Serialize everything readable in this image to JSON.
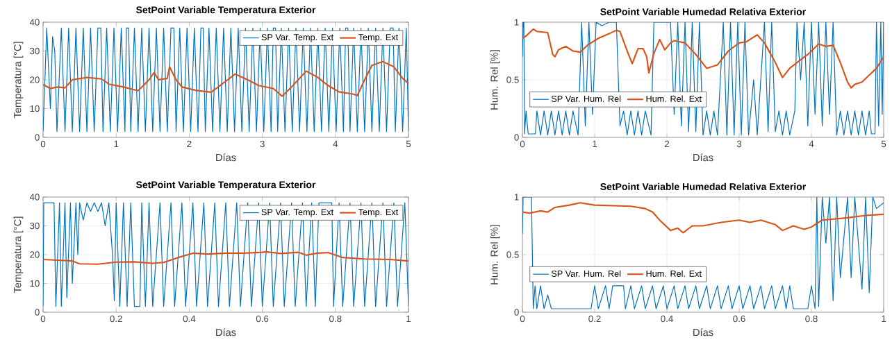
{
  "chart_data": [
    {
      "type": "line",
      "title": "SetPoint Variable Temperatura Exterior",
      "xlabel": "Días",
      "ylabel": "Temperatura [°C]",
      "xlim": [
        0,
        5
      ],
      "ylim": [
        0,
        40
      ],
      "xticks": [
        0,
        1,
        2,
        3,
        4,
        5
      ],
      "yticks": [
        0,
        10,
        20,
        30,
        40
      ],
      "grid": true,
      "legend": "top right",
      "series": [
        {
          "name": "SP Var. Temp. Ext",
          "color": "#0072bd",
          "x": [
            0,
            0.05,
            0.1,
            0.13,
            0.16,
            0.19,
            0.25,
            0.3,
            0.35,
            0.4,
            0.45,
            0.5,
            0.55,
            0.6,
            0.65,
            0.7,
            0.75,
            0.79,
            0.82,
            0.87,
            0.92,
            0.97,
            1.02,
            1.07,
            1.12,
            1.14,
            1.17,
            1.2,
            1.25,
            1.3,
            1.35,
            1.4,
            1.45,
            1.5,
            1.55,
            1.6,
            1.65,
            1.7,
            1.75,
            1.79,
            1.82,
            1.87,
            1.92,
            1.97,
            2.02,
            2.07,
            2.12,
            2.16,
            2.19,
            2.22,
            2.27,
            2.32,
            2.37,
            2.42,
            2.47,
            2.52,
            2.57,
            2.62,
            2.67,
            2.72,
            2.77,
            2.82,
            2.87,
            2.92,
            2.97,
            3.02,
            3.07,
            3.12,
            3.15,
            3.18,
            3.21,
            3.26,
            3.31,
            3.36,
            3.41,
            3.46,
            3.51,
            3.56,
            3.61,
            3.66,
            3.71,
            3.76,
            3.81,
            3.86,
            3.91,
            3.96,
            4.01,
            4.06,
            4.11,
            4.14,
            4.17,
            4.2,
            4.25,
            4.3,
            4.35,
            4.4,
            4.45,
            4.5,
            4.55,
            4.6,
            4.65,
            4.7,
            4.75,
            4.79,
            4.82,
            4.87,
            4.92,
            4.97,
            5
          ],
          "values": [
            2,
            38,
            10,
            35,
            30,
            2,
            38,
            2,
            38,
            2,
            38,
            2,
            38,
            2,
            38,
            2,
            38,
            38,
            2,
            38,
            2,
            38,
            2,
            38,
            2,
            38,
            38,
            2,
            38,
            2,
            38,
            2,
            38,
            2,
            38,
            2,
            38,
            2,
            38,
            38,
            2,
            38,
            2,
            38,
            2,
            38,
            2,
            38,
            38,
            2,
            38,
            2,
            38,
            2,
            38,
            2,
            38,
            2,
            38,
            2,
            38,
            2,
            38,
            2,
            38,
            2,
            38,
            2,
            38,
            38,
            2,
            38,
            2,
            38,
            2,
            38,
            2,
            38,
            2,
            38,
            2,
            38,
            2,
            38,
            2,
            38,
            2,
            38,
            2,
            38,
            38,
            2,
            38,
            2,
            38,
            2,
            38,
            2,
            38,
            2,
            38,
            2,
            38,
            38,
            2,
            38,
            2,
            38,
            2
          ]
        },
        {
          "name": "Temp. Ext",
          "color": "#d95319",
          "x": [
            0,
            0.1,
            0.2,
            0.3,
            0.4,
            0.6,
            0.8,
            0.9,
            1.1,
            1.3,
            1.45,
            1.52,
            1.58,
            1.7,
            1.73,
            1.82,
            1.9,
            2.1,
            2.3,
            2.45,
            2.63,
            2.8,
            2.95,
            3.15,
            3.27,
            3.4,
            3.6,
            3.75,
            3.9,
            4.05,
            4.25,
            4.3,
            4.4,
            4.5,
            4.65,
            4.8,
            4.92,
            5
          ],
          "values": [
            18.3,
            17,
            17.5,
            17.2,
            20,
            20.8,
            20.3,
            18.5,
            17.5,
            16.2,
            20,
            22.5,
            20,
            20.5,
            24.5,
            20,
            17.5,
            16.3,
            15.7,
            18.5,
            22,
            20,
            18,
            17,
            14.3,
            17.5,
            23,
            21,
            18,
            15.8,
            15,
            14.5,
            20,
            25,
            26.3,
            24.5,
            20.5,
            18.7
          ]
        }
      ]
    },
    {
      "type": "line",
      "title": "SetPoint Variable Humedad Relativa Exterior",
      "xlabel": "Días",
      "ylabel": "Hum. Rel [%]",
      "xlim": [
        0,
        5
      ],
      "ylim": [
        0,
        1
      ],
      "xticks": [
        0,
        1,
        2,
        3,
        4,
        5
      ],
      "yticks": [
        0,
        0.5,
        1
      ],
      "grid": true,
      "legend": "left",
      "series": [
        {
          "name": "SP Var. Hum. Rel",
          "color": "#0072bd",
          "x": [
            0,
            0.01,
            0.02,
            0.03,
            0.05,
            0.08,
            0.18,
            0.2,
            0.25,
            0.3,
            0.35,
            0.4,
            0.45,
            0.5,
            0.55,
            0.6,
            0.65,
            0.7,
            0.77,
            0.82,
            0.87,
            0.92,
            0.97,
            1.02,
            1.1,
            1.15,
            1.2,
            1.3,
            1.35,
            1.4,
            1.45,
            1.5,
            1.55,
            1.6,
            1.65,
            1.7,
            1.78,
            1.82,
            1.95,
            2.0,
            2.05,
            2.1,
            2.15,
            2.2,
            2.25,
            2.3,
            2.35,
            2.4,
            2.45,
            2.5,
            2.55,
            2.6,
            2.65,
            2.7,
            2.78,
            2.83,
            2.88,
            2.93,
            2.98,
            3.03,
            3.08,
            3.13,
            3.2,
            3.25,
            3.35,
            3.4,
            3.45,
            3.5,
            3.55,
            3.6,
            3.65,
            3.7,
            3.77,
            3.8,
            3.85,
            3.9,
            3.95,
            4.0,
            4.05,
            4.1,
            4.15,
            4.2,
            4.25,
            4.3,
            4.35,
            4.4,
            4.45,
            4.5,
            4.55,
            4.6,
            4.65,
            4.7,
            4.75,
            4.8,
            4.83,
            4.88,
            4.9,
            4.93,
            4.96,
            4.98,
            5
          ],
          "values": [
            0.7,
            1,
            1,
            0.03,
            0.23,
            0.03,
            0.03,
            0.23,
            0.02,
            0.23,
            0.02,
            0.23,
            0.02,
            0.23,
            0.02,
            0.23,
            0.02,
            0.23,
            0.02,
            1,
            0.1,
            1,
            0.2,
            1,
            0.97,
            null,
            1,
            1,
            0.1,
            0.23,
            0.02,
            0.23,
            0.02,
            0.23,
            0.02,
            0.23,
            0.02,
            1,
            1,
            null,
            1,
            0.2,
            1,
            0.1,
            1,
            0.05,
            1,
            0.05,
            1,
            0.02,
            0.23,
            0.02,
            0.23,
            0.02,
            1,
            0.02,
            1,
            0.02,
            1,
            0.02,
            1,
            0.02,
            0.5,
            0.02,
            1,
            0.05,
            1,
            0.05,
            0.23,
            0.02,
            0.23,
            0.02,
            0.23,
            1,
            0.5,
            1,
            0.1,
            1,
            0.2,
            1,
            0.1,
            1,
            0.2,
            1,
            0.02,
            0.23,
            0.02,
            0.23,
            0.02,
            0.23,
            0.02,
            0.23,
            0.02,
            0.23,
            0.03,
            0.03,
            1,
            0.1,
            1,
            0.2,
            1
          ]
        },
        {
          "name": "Hum. Rel. Ext",
          "color": "#d95319",
          "x": [
            0,
            0.05,
            0.15,
            0.2,
            0.35,
            0.42,
            0.45,
            0.5,
            0.6,
            0.7,
            0.8,
            0.9,
            1.05,
            1.2,
            1.3,
            1.35,
            1.45,
            1.52,
            1.6,
            1.67,
            1.72,
            1.75,
            1.82,
            1.9,
            1.97,
            2.05,
            2.1,
            2.25,
            2.4,
            2.55,
            2.7,
            2.85,
            3.0,
            3.1,
            3.25,
            3.35,
            3.5,
            3.6,
            3.7,
            3.8,
            3.95,
            4.1,
            4.2,
            4.3,
            4.4,
            4.5,
            4.55,
            4.6,
            4.7,
            4.8,
            4.9,
            5
          ],
          "values": [
            0.86,
            0.88,
            0.94,
            0.92,
            0.91,
            0.72,
            0.7,
            0.76,
            0.79,
            0.75,
            0.74,
            0.8,
            0.86,
            0.9,
            0.93,
            0.92,
            0.75,
            0.64,
            0.77,
            0.77,
            0.7,
            0.56,
            0.73,
            0.85,
            0.76,
            0.82,
            0.84,
            0.82,
            0.72,
            0.6,
            0.63,
            0.75,
            0.82,
            0.83,
            0.89,
            0.82,
            0.65,
            0.52,
            0.6,
            0.65,
            0.72,
            0.81,
            0.79,
            0.8,
            0.65,
            0.48,
            0.43,
            0.46,
            0.48,
            0.54,
            0.6,
            0.7
          ]
        }
      ]
    },
    {
      "type": "line",
      "title": "SetPoint Variable Temperatura Exterior",
      "xlabel": "Días",
      "ylabel": "Temperatura [°C]",
      "xlim": [
        0,
        1
      ],
      "ylim": [
        0,
        40
      ],
      "xticks": [
        0,
        0.2,
        0.4,
        0.6,
        0.8,
        1
      ],
      "yticks": [
        0,
        10,
        20,
        30,
        40
      ],
      "grid": true,
      "legend": "top right",
      "series": [
        {
          "name": "SP Var. Temp. Ext",
          "color": "#0072bd",
          "x": [
            0,
            0.002,
            0.03,
            0.035,
            0.045,
            0.05,
            0.06,
            0.065,
            0.075,
            0.08,
            0.09,
            0.095,
            0.1,
            0.11,
            0.12,
            0.13,
            0.14,
            0.15,
            0.16,
            0.17,
            0.18,
            0.19,
            0.195,
            0.2,
            0.21,
            0.22,
            0.23,
            0.24,
            0.25,
            0.255,
            0.265,
            0.27,
            0.28,
            0.29,
            0.3,
            0.32,
            0.33,
            0.35,
            0.36,
            0.38,
            0.39,
            0.41,
            0.42,
            0.44,
            0.45,
            0.47,
            0.48,
            0.5,
            0.51,
            0.53,
            0.54,
            0.56,
            0.57,
            0.59,
            0.6,
            0.62,
            0.63,
            0.65,
            0.66,
            0.68,
            0.69,
            0.71,
            0.72,
            0.735,
            0.745,
            0.755,
            0.79,
            0.795,
            0.81,
            0.82,
            0.84,
            0.85,
            0.87,
            0.88,
            0.9,
            0.91,
            0.93,
            0.94,
            0.96,
            0.97,
            0.99,
            1
          ],
          "values": [
            2,
            38,
            38,
            2,
            38,
            2,
            38,
            5,
            38,
            10,
            38,
            20,
            38,
            32,
            38,
            35,
            38,
            35,
            38,
            30,
            38,
            20,
            4,
            38,
            2,
            38,
            2,
            38,
            2,
            2,
            2,
            38,
            2,
            38,
            2,
            38,
            2,
            38,
            2,
            38,
            2,
            38,
            2,
            38,
            2,
            38,
            2,
            38,
            2,
            38,
            2,
            38,
            2,
            38,
            2,
            38,
            2,
            38,
            2,
            38,
            2,
            38,
            2,
            38,
            2,
            38,
            38,
            2,
            38,
            2,
            38,
            2,
            38,
            2,
            38,
            2,
            38,
            2,
            38,
            2,
            38,
            2
          ]
        },
        {
          "name": "Temp. Ext",
          "color": "#d95319",
          "x": [
            0,
            0.05,
            0.08,
            0.1,
            0.15,
            0.2,
            0.25,
            0.3,
            0.33,
            0.37,
            0.41,
            0.45,
            0.5,
            0.55,
            0.6,
            0.61,
            0.65,
            0.7,
            0.72,
            0.75,
            0.78,
            0.82,
            0.88,
            0.95,
            1
          ],
          "values": [
            18.3,
            18,
            17.8,
            16.8,
            16.7,
            17.4,
            17.5,
            17,
            17.3,
            19,
            20.5,
            20.2,
            20.5,
            20.5,
            20.8,
            21,
            20.4,
            20.8,
            19.8,
            20.5,
            20.7,
            19,
            18.5,
            18.3,
            17.8
          ]
        }
      ]
    },
    {
      "type": "line",
      "title": "SetPoint Variable Humedad Relativa Exterior",
      "xlabel": "Días",
      "ylabel": "Hum. Rel [%]",
      "xlim": [
        0,
        1
      ],
      "ylim": [
        0,
        1
      ],
      "xticks": [
        0,
        0.2,
        0.4,
        0.6,
        0.8,
        1
      ],
      "yticks": [
        0,
        0.5,
        1
      ],
      "grid": true,
      "legend": "left",
      "series": [
        {
          "name": "SP Var. Hum. Rel",
          "color": "#0072bd",
          "x": [
            0,
            0.002,
            0.025,
            0.03,
            0.035,
            0.04,
            0.05,
            0.06,
            0.07,
            0.08,
            0.1,
            0.19,
            0.2,
            0.21,
            0.23,
            0.24,
            0.25,
            0.28,
            0.285,
            0.3,
            0.31,
            0.33,
            0.34,
            0.36,
            0.37,
            0.39,
            0.4,
            0.42,
            0.43,
            0.45,
            0.46,
            0.48,
            0.49,
            0.51,
            0.52,
            0.54,
            0.55,
            0.57,
            0.58,
            0.6,
            0.61,
            0.63,
            0.64,
            0.66,
            0.67,
            0.69,
            0.7,
            0.72,
            0.73,
            0.74,
            0.75,
            0.79,
            0.8,
            0.81,
            0.815,
            0.82,
            0.83,
            0.84,
            0.85,
            0.86,
            0.87,
            0.88,
            0.9,
            0.91,
            0.92,
            0.94,
            0.95,
            0.96,
            0.97,
            0.98,
            1
          ],
          "values": [
            0.68,
            1,
            1,
            0.03,
            0.23,
            0.03,
            0.23,
            0.03,
            0.15,
            0.03,
            0.03,
            0.03,
            0.23,
            0.03,
            0.23,
            0.03,
            0.23,
            0.23,
            0.03,
            0.23,
            0.03,
            0.23,
            0.03,
            0.23,
            0.03,
            0.23,
            0.03,
            0.23,
            0.03,
            0.23,
            0.03,
            0.23,
            0.03,
            0.23,
            0.03,
            0.23,
            0.03,
            0.23,
            0.03,
            0.23,
            0.03,
            0.23,
            0.03,
            0.23,
            0.03,
            0.23,
            0.03,
            0.23,
            0.03,
            0.23,
            0.03,
            0.03,
            0.23,
            0.03,
            1,
            0.05,
            1,
            0.6,
            1,
            0.1,
            1,
            0.3,
            1,
            0.3,
            1,
            0.2,
            1,
            0.17,
            1,
            0.9,
            0.95
          ]
        },
        {
          "name": "Hum. Rel. Ext",
          "color": "#d95319",
          "x": [
            0,
            0.02,
            0.05,
            0.07,
            0.09,
            0.13,
            0.16,
            0.2,
            0.3,
            0.34,
            0.36,
            0.38,
            0.41,
            0.43,
            0.445,
            0.47,
            0.5,
            0.55,
            0.6,
            0.63,
            0.66,
            0.7,
            0.72,
            0.75,
            0.78,
            0.8,
            0.83,
            0.9,
            0.95,
            1
          ],
          "values": [
            0.87,
            0.86,
            0.88,
            0.87,
            0.91,
            0.93,
            0.95,
            0.93,
            0.92,
            0.9,
            0.87,
            0.8,
            0.71,
            0.73,
            0.69,
            0.75,
            0.75,
            0.78,
            0.8,
            0.78,
            0.8,
            0.76,
            0.71,
            0.75,
            0.72,
            0.74,
            0.8,
            0.82,
            0.84,
            0.85
          ]
        }
      ]
    }
  ]
}
